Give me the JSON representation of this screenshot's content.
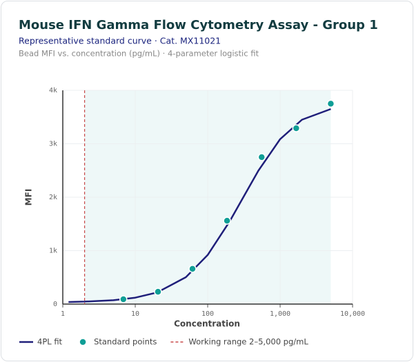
{
  "chart_data": {
    "type": "line",
    "title": "Mouse IFN Gamma Flow Cytometry Assay - Group 1",
    "subtitle": "Representative standard curve · Cat. MX11021",
    "description": "Bead MFI vs. concentration (pg/mL) · 4-parameter logistic fit",
    "x_label": "Concentration",
    "y_label": "MFI",
    "x_log": true,
    "xlim": [
      1,
      10000
    ],
    "xticks": [
      1,
      10,
      100,
      {
        "value": 1000,
        "label": "1,000"
      },
      {
        "value": 10000,
        "label": "10,000"
      }
    ],
    "ylim": [
      0,
      4000
    ],
    "yticks": [
      {
        "value": 0,
        "label": "0"
      },
      {
        "value": 1000,
        "label": "1k"
      },
      {
        "value": 2000,
        "label": "2k"
      },
      {
        "value": 3000,
        "label": "3k"
      },
      {
        "value": 4000,
        "label": "4k"
      }
    ],
    "grid": true,
    "series": [
      {
        "name": "4PL fit",
        "color": "#1f1f7a",
        "style": "line",
        "x": [
          1.2,
          2,
          5,
          10,
          20,
          50,
          100,
          200,
          300,
          500,
          1000,
          2000,
          5000
        ],
        "values": [
          39,
          46,
          73,
          120,
          217,
          503,
          919,
          1542,
          1965,
          2495,
          3087,
          3450,
          3650
        ]
      },
      {
        "name": "Standard points",
        "color": "#0f9e96",
        "style": "points",
        "x": [
          6.86,
          20.6,
          61.7,
          185,
          556,
          1667,
          5000
        ],
        "values": [
          90,
          230,
          660,
          1560,
          2750,
          3290,
          3750
        ]
      }
    ],
    "working_range": {
      "label": "Working range 2–5,000 pg/mL",
      "range": [
        2,
        5000
      ],
      "color": "#c94a4a",
      "fill": "#eef8f8"
    }
  }
}
